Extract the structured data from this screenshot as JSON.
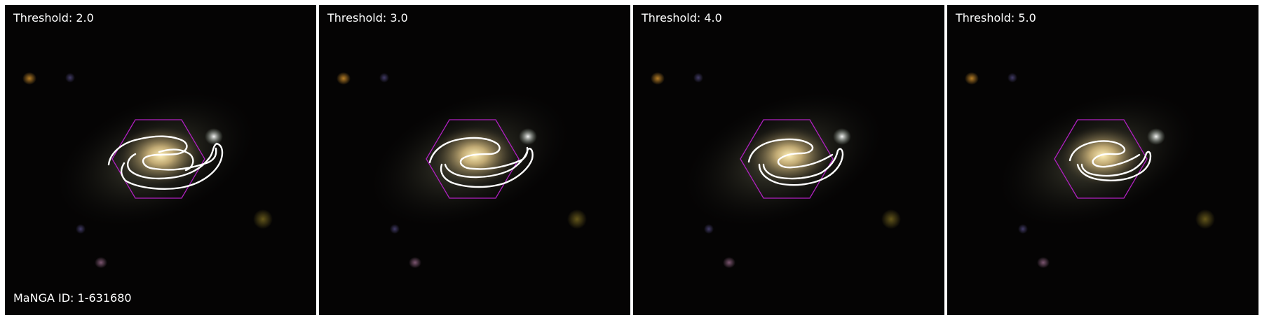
{
  "manga_id": "MaNGA ID: 1-631680",
  "panels": [
    {
      "threshold_label": "Threshold: 2.0"
    },
    {
      "threshold_label": "Threshold: 3.0"
    },
    {
      "threshold_label": "Threshold: 4.0"
    },
    {
      "threshold_label": "Threshold: 5.0"
    }
  ],
  "colors": {
    "contour": "#ffffff",
    "hexagon": "#b020c0",
    "background": "#050404",
    "galaxy_core": "#f2dca0"
  }
}
